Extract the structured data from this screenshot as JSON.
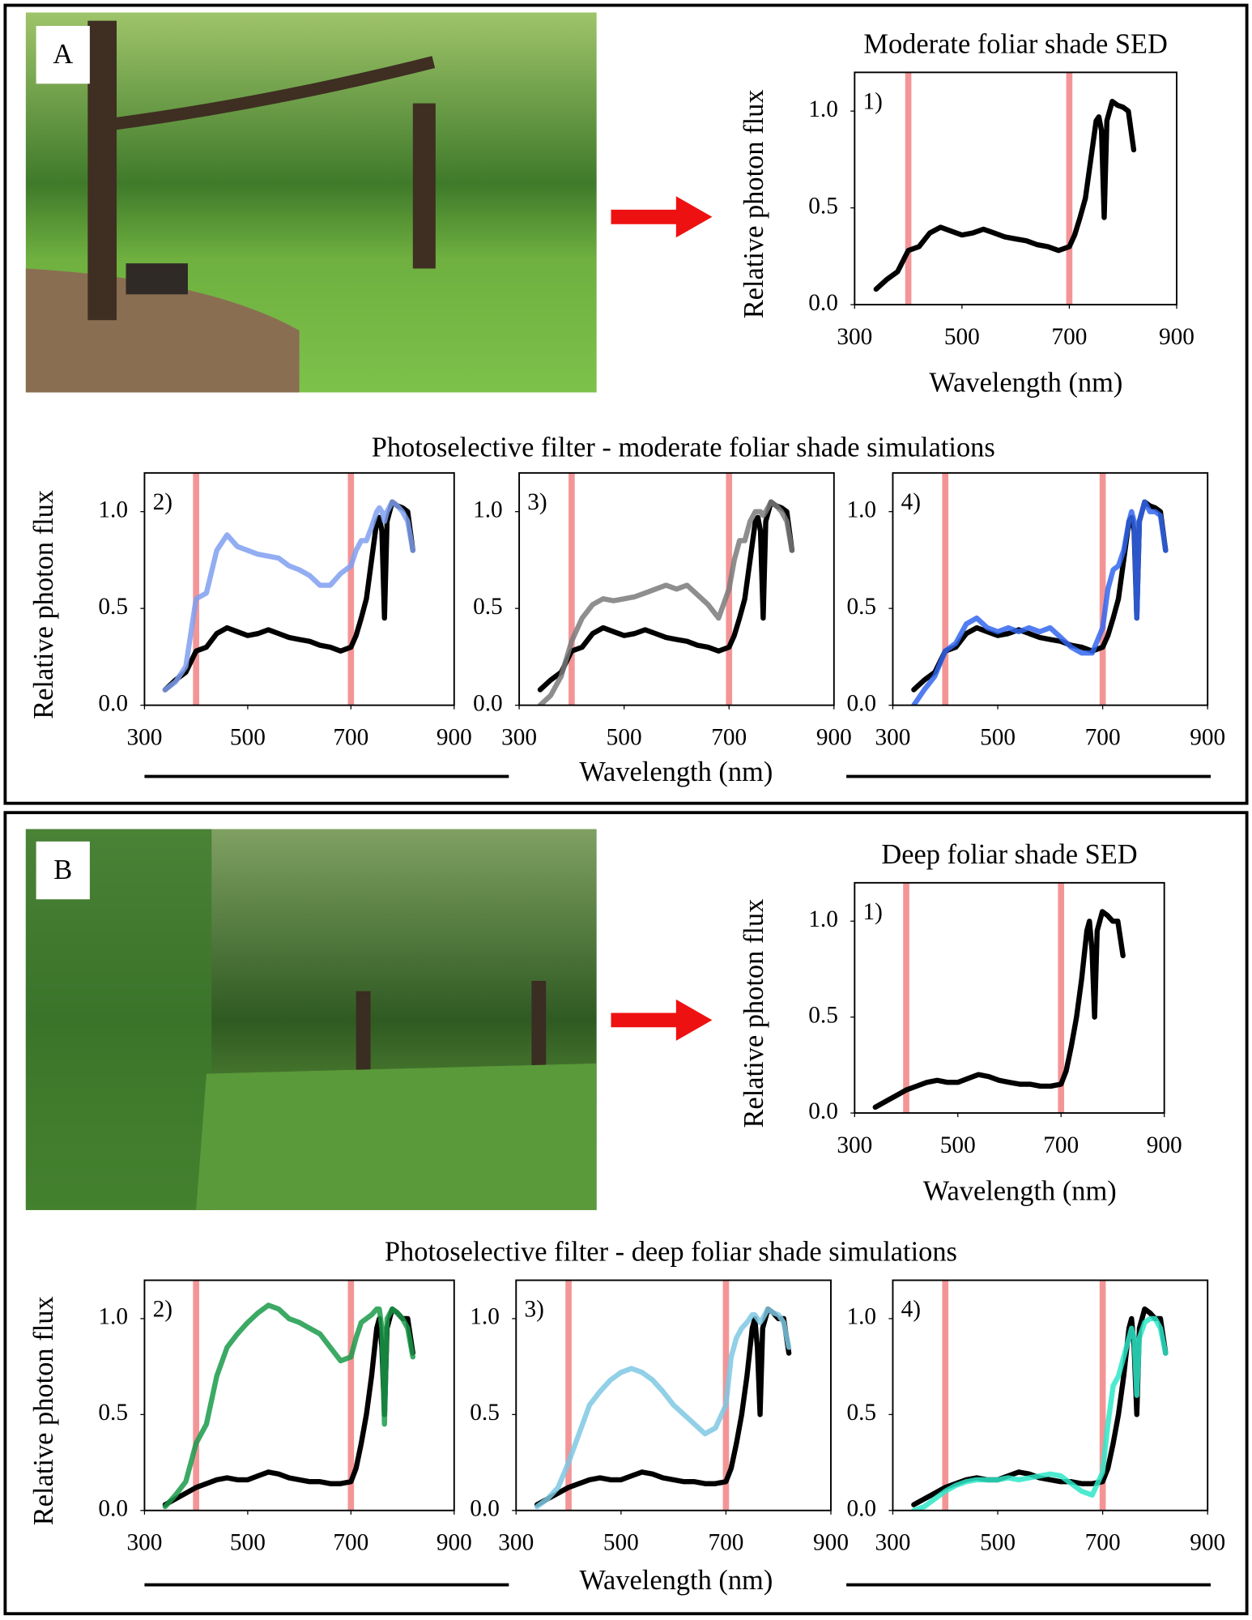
{
  "panels": [
    {
      "label": "A",
      "group_title": "Photoselective filter - moderate foliar shade simulations",
      "group_xlabel": "Wavelength (nm)"
    },
    {
      "label": "B",
      "group_title": "Photoselective filter - deep foliar shade simulations",
      "group_xlabel": "Wavelength (nm)"
    }
  ],
  "chart_data": [
    {
      "type": "line",
      "title": "Moderate foliar shade SED",
      "label": "1)",
      "xlabel": "Wavelength (nm)",
      "ylabel": "Relative photon flux",
      "x": [
        340,
        360,
        380,
        400,
        420,
        440,
        460,
        480,
        500,
        520,
        540,
        560,
        580,
        600,
        620,
        640,
        660,
        680,
        700,
        710,
        720,
        730,
        740,
        750,
        755,
        760,
        765,
        770,
        780,
        790,
        800,
        810,
        820
      ],
      "series": [
        {
          "color": "#000000",
          "values": [
            0.08,
            0.13,
            0.17,
            0.28,
            0.3,
            0.37,
            0.4,
            0.38,
            0.36,
            0.37,
            0.39,
            0.37,
            0.35,
            0.34,
            0.33,
            0.31,
            0.3,
            0.28,
            0.3,
            0.36,
            0.45,
            0.55,
            0.75,
            0.95,
            0.97,
            0.9,
            0.45,
            0.95,
            1.05,
            1.03,
            1.02,
            1.0,
            0.8
          ]
        }
      ],
      "xlim": [
        300,
        900
      ],
      "ylim": [
        0,
        1.2
      ],
      "xticks": [
        300,
        500,
        700,
        900
      ],
      "yticks": [
        {
          "value": 0,
          "label": "0.0"
        },
        {
          "value": 0.5,
          "label": "0.5"
        },
        {
          "value": 1,
          "label": "1.0"
        }
      ],
      "vlines": [
        400,
        700
      ],
      "vline_color": "#f28a8c"
    },
    {
      "type": "line",
      "label": "2)",
      "ylabel": "Relative photon flux",
      "x": [
        340,
        360,
        380,
        400,
        420,
        440,
        460,
        480,
        500,
        520,
        540,
        560,
        580,
        600,
        620,
        640,
        660,
        680,
        700,
        710,
        720,
        730,
        740,
        750,
        755,
        760,
        765,
        770,
        780,
        790,
        800,
        810,
        820
      ],
      "series": [
        {
          "color": "#000000",
          "values": [
            0.08,
            0.13,
            0.17,
            0.28,
            0.3,
            0.37,
            0.4,
            0.38,
            0.36,
            0.37,
            0.39,
            0.37,
            0.35,
            0.34,
            0.33,
            0.31,
            0.3,
            0.28,
            0.3,
            0.36,
            0.45,
            0.55,
            0.75,
            0.95,
            0.97,
            0.9,
            0.45,
            0.95,
            1.05,
            1.03,
            1.02,
            1.0,
            0.8
          ]
        },
        {
          "color": "#7f9ff0",
          "values": [
            0.08,
            0.12,
            0.2,
            0.55,
            0.58,
            0.8,
            0.88,
            0.82,
            0.8,
            0.78,
            0.77,
            0.76,
            0.72,
            0.7,
            0.67,
            0.62,
            0.62,
            0.68,
            0.72,
            0.8,
            0.85,
            0.85,
            0.92,
            1.0,
            1.02,
            1.0,
            0.95,
            1.0,
            1.05,
            1.03,
            1.0,
            0.95,
            0.8
          ]
        }
      ],
      "xlim": [
        300,
        900
      ],
      "ylim": [
        0,
        1.2
      ],
      "xticks": [
        300,
        500,
        700,
        900
      ],
      "yticks": [
        {
          "value": 0,
          "label": "0.0"
        },
        {
          "value": 0.5,
          "label": "0.5"
        },
        {
          "value": 1,
          "label": "1.0"
        }
      ],
      "vlines": [
        400,
        700
      ],
      "vline_color": "#f28a8c"
    },
    {
      "type": "line",
      "label": "3)",
      "x": [
        340,
        360,
        380,
        400,
        420,
        440,
        460,
        480,
        500,
        520,
        540,
        560,
        580,
        600,
        620,
        640,
        660,
        680,
        700,
        710,
        720,
        730,
        740,
        750,
        755,
        760,
        765,
        770,
        780,
        790,
        800,
        810,
        820
      ],
      "series": [
        {
          "color": "#000000",
          "values": [
            0.08,
            0.13,
            0.17,
            0.28,
            0.3,
            0.37,
            0.4,
            0.38,
            0.36,
            0.37,
            0.39,
            0.37,
            0.35,
            0.34,
            0.33,
            0.31,
            0.3,
            0.28,
            0.3,
            0.36,
            0.45,
            0.55,
            0.75,
            0.95,
            0.97,
            0.9,
            0.45,
            0.95,
            1.05,
            1.03,
            1.02,
            1.0,
            0.8
          ]
        },
        {
          "color": "#7a7a7a",
          "values": [
            0.0,
            0.05,
            0.15,
            0.33,
            0.45,
            0.52,
            0.55,
            0.54,
            0.55,
            0.56,
            0.58,
            0.6,
            0.62,
            0.6,
            0.62,
            0.57,
            0.52,
            0.45,
            0.6,
            0.75,
            0.85,
            0.85,
            0.95,
            1.0,
            1.0,
            1.0,
            0.98,
            1.0,
            1.05,
            1.03,
            1.0,
            0.95,
            0.8
          ]
        }
      ],
      "xlim": [
        300,
        900
      ],
      "ylim": [
        0,
        1.2
      ],
      "xticks": [
        300,
        500,
        700,
        900
      ],
      "yticks": [
        {
          "value": 0,
          "label": "0.0"
        },
        {
          "value": 0.5,
          "label": "0.5"
        },
        {
          "value": 1,
          "label": "1.0"
        }
      ],
      "vlines": [
        400,
        700
      ],
      "vline_color": "#f28a8c"
    },
    {
      "type": "line",
      "label": "4)",
      "x": [
        340,
        360,
        380,
        400,
        420,
        440,
        460,
        480,
        500,
        520,
        540,
        560,
        580,
        600,
        620,
        640,
        660,
        680,
        700,
        710,
        720,
        730,
        740,
        750,
        755,
        760,
        765,
        770,
        780,
        790,
        800,
        810,
        820
      ],
      "series": [
        {
          "color": "#000000",
          "values": [
            0.08,
            0.13,
            0.17,
            0.28,
            0.3,
            0.37,
            0.4,
            0.38,
            0.36,
            0.37,
            0.39,
            0.37,
            0.35,
            0.34,
            0.33,
            0.31,
            0.3,
            0.28,
            0.3,
            0.36,
            0.45,
            0.55,
            0.75,
            0.95,
            0.97,
            0.9,
            0.45,
            0.95,
            1.05,
            1.03,
            1.02,
            1.0,
            0.8
          ]
        },
        {
          "color": "#3366ee",
          "values": [
            0.0,
            0.08,
            0.15,
            0.28,
            0.32,
            0.42,
            0.45,
            0.4,
            0.38,
            0.4,
            0.38,
            0.4,
            0.38,
            0.4,
            0.35,
            0.3,
            0.27,
            0.27,
            0.4,
            0.6,
            0.7,
            0.72,
            0.8,
            0.95,
            1.0,
            0.95,
            0.45,
            0.95,
            1.05,
            1.0,
            1.0,
            0.98,
            0.8
          ]
        }
      ],
      "xlim": [
        300,
        900
      ],
      "ylim": [
        0,
        1.2
      ],
      "xticks": [
        300,
        500,
        700,
        900
      ],
      "yticks": [
        {
          "value": 0,
          "label": "0.0"
        },
        {
          "value": 0.5,
          "label": "0.5"
        },
        {
          "value": 1,
          "label": "1.0"
        }
      ],
      "vlines": [
        400,
        700
      ],
      "vline_color": "#f28a8c"
    },
    {
      "type": "line",
      "title": "Deep foliar shade SED",
      "label": "1)",
      "xlabel": "Wavelength (nm)",
      "ylabel": "Relative photon flux",
      "x": [
        340,
        360,
        380,
        400,
        420,
        440,
        460,
        480,
        500,
        520,
        540,
        560,
        580,
        600,
        620,
        640,
        660,
        680,
        700,
        710,
        720,
        730,
        740,
        750,
        755,
        760,
        765,
        770,
        780,
        790,
        800,
        810,
        820
      ],
      "series": [
        {
          "color": "#000000",
          "values": [
            0.03,
            0.06,
            0.09,
            0.12,
            0.14,
            0.16,
            0.17,
            0.16,
            0.16,
            0.18,
            0.2,
            0.19,
            0.17,
            0.16,
            0.15,
            0.15,
            0.14,
            0.14,
            0.15,
            0.22,
            0.35,
            0.5,
            0.7,
            0.95,
            1.0,
            0.85,
            0.5,
            0.95,
            1.05,
            1.03,
            1.0,
            1.0,
            0.82
          ]
        }
      ],
      "xlim": [
        300,
        900
      ],
      "ylim": [
        0,
        1.2
      ],
      "xticks": [
        300,
        500,
        700,
        900
      ],
      "yticks": [
        {
          "value": 0,
          "label": "0.0"
        },
        {
          "value": 0.5,
          "label": "0.5"
        },
        {
          "value": 1,
          "label": "1.0"
        }
      ],
      "vlines": [
        400,
        700
      ],
      "vline_color": "#f28a8c"
    },
    {
      "type": "line",
      "label": "2)",
      "ylabel": "Relative photon flux",
      "x": [
        340,
        360,
        380,
        400,
        420,
        440,
        460,
        480,
        500,
        520,
        540,
        560,
        580,
        600,
        620,
        640,
        660,
        680,
        700,
        710,
        720,
        730,
        740,
        750,
        755,
        760,
        765,
        770,
        780,
        790,
        800,
        810,
        820
      ],
      "series": [
        {
          "color": "#000000",
          "values": [
            0.03,
            0.06,
            0.09,
            0.12,
            0.14,
            0.16,
            0.17,
            0.16,
            0.16,
            0.18,
            0.2,
            0.19,
            0.17,
            0.16,
            0.15,
            0.15,
            0.14,
            0.14,
            0.15,
            0.22,
            0.35,
            0.5,
            0.7,
            0.95,
            1.0,
            0.85,
            0.5,
            0.95,
            1.05,
            1.03,
            1.0,
            1.0,
            0.82
          ]
        },
        {
          "color": "#1a9a4a",
          "values": [
            0.02,
            0.08,
            0.15,
            0.35,
            0.45,
            0.7,
            0.85,
            0.92,
            0.98,
            1.03,
            1.07,
            1.05,
            1.0,
            0.98,
            0.95,
            0.92,
            0.85,
            0.78,
            0.8,
            0.9,
            0.98,
            1.0,
            1.02,
            1.05,
            1.05,
            0.95,
            0.45,
            1.0,
            1.05,
            1.03,
            1.0,
            0.95,
            0.8
          ]
        }
      ],
      "xlim": [
        300,
        900
      ],
      "ylim": [
        0,
        1.2
      ],
      "xticks": [
        300,
        500,
        700,
        900
      ],
      "yticks": [
        {
          "value": 0,
          "label": "0.0"
        },
        {
          "value": 0.5,
          "label": "0.5"
        },
        {
          "value": 1,
          "label": "1.0"
        }
      ],
      "vlines": [
        400,
        700
      ],
      "vline_color": "#f28a8c"
    },
    {
      "type": "line",
      "label": "3)",
      "x": [
        340,
        360,
        380,
        400,
        420,
        440,
        460,
        480,
        500,
        520,
        540,
        560,
        580,
        600,
        620,
        640,
        660,
        680,
        700,
        710,
        720,
        730,
        740,
        750,
        755,
        760,
        765,
        770,
        780,
        790,
        800,
        810,
        820
      ],
      "series": [
        {
          "color": "#000000",
          "values": [
            0.03,
            0.06,
            0.09,
            0.12,
            0.14,
            0.16,
            0.17,
            0.16,
            0.16,
            0.18,
            0.2,
            0.19,
            0.17,
            0.16,
            0.15,
            0.15,
            0.14,
            0.14,
            0.15,
            0.22,
            0.35,
            0.5,
            0.7,
            0.95,
            1.0,
            0.85,
            0.5,
            0.95,
            1.05,
            1.03,
            1.0,
            1.0,
            0.82
          ]
        },
        {
          "color": "#7ec8e3",
          "values": [
            0.02,
            0.06,
            0.12,
            0.25,
            0.4,
            0.55,
            0.62,
            0.68,
            0.72,
            0.74,
            0.72,
            0.68,
            0.62,
            0.55,
            0.5,
            0.45,
            0.4,
            0.43,
            0.55,
            0.8,
            0.9,
            0.95,
            0.98,
            1.02,
            1.02,
            1.0,
            0.98,
            1.0,
            1.05,
            1.03,
            1.02,
            0.98,
            0.85
          ]
        }
      ],
      "xlim": [
        300,
        900
      ],
      "ylim": [
        0,
        1.2
      ],
      "xticks": [
        300,
        500,
        700,
        900
      ],
      "yticks": [
        {
          "value": 0,
          "label": "0.0"
        },
        {
          "value": 0.5,
          "label": "0.5"
        },
        {
          "value": 1,
          "label": "1.0"
        }
      ],
      "vlines": [
        400,
        700
      ],
      "vline_color": "#f28a8c"
    },
    {
      "type": "line",
      "label": "4)",
      "x": [
        340,
        360,
        380,
        400,
        420,
        440,
        460,
        480,
        500,
        520,
        540,
        560,
        580,
        600,
        620,
        640,
        660,
        680,
        700,
        710,
        720,
        730,
        740,
        750,
        755,
        760,
        765,
        770,
        780,
        790,
        800,
        810,
        820
      ],
      "series": [
        {
          "color": "#000000",
          "values": [
            0.03,
            0.06,
            0.09,
            0.12,
            0.14,
            0.16,
            0.17,
            0.16,
            0.16,
            0.18,
            0.2,
            0.19,
            0.17,
            0.16,
            0.15,
            0.15,
            0.14,
            0.14,
            0.15,
            0.22,
            0.35,
            0.5,
            0.7,
            0.95,
            1.0,
            0.85,
            0.5,
            0.95,
            1.05,
            1.03,
            1.0,
            1.0,
            0.82
          ]
        },
        {
          "color": "#2de8c8",
          "values": [
            0.0,
            0.02,
            0.06,
            0.1,
            0.13,
            0.15,
            0.16,
            0.16,
            0.16,
            0.17,
            0.16,
            0.17,
            0.18,
            0.19,
            0.18,
            0.14,
            0.1,
            0.08,
            0.2,
            0.45,
            0.65,
            0.7,
            0.8,
            0.9,
            0.95,
            0.9,
            0.6,
            0.9,
            0.98,
            1.0,
            1.0,
            0.95,
            0.82
          ]
        }
      ],
      "xlim": [
        300,
        900
      ],
      "ylim": [
        0,
        1.2
      ],
      "xticks": [
        300,
        500,
        700,
        900
      ],
      "yticks": [
        {
          "value": 0,
          "label": "0.0"
        },
        {
          "value": 0.5,
          "label": "0.5"
        },
        {
          "value": 1,
          "label": "1.0"
        }
      ],
      "vlines": [
        400,
        700
      ],
      "vline_color": "#f28a8c"
    }
  ]
}
